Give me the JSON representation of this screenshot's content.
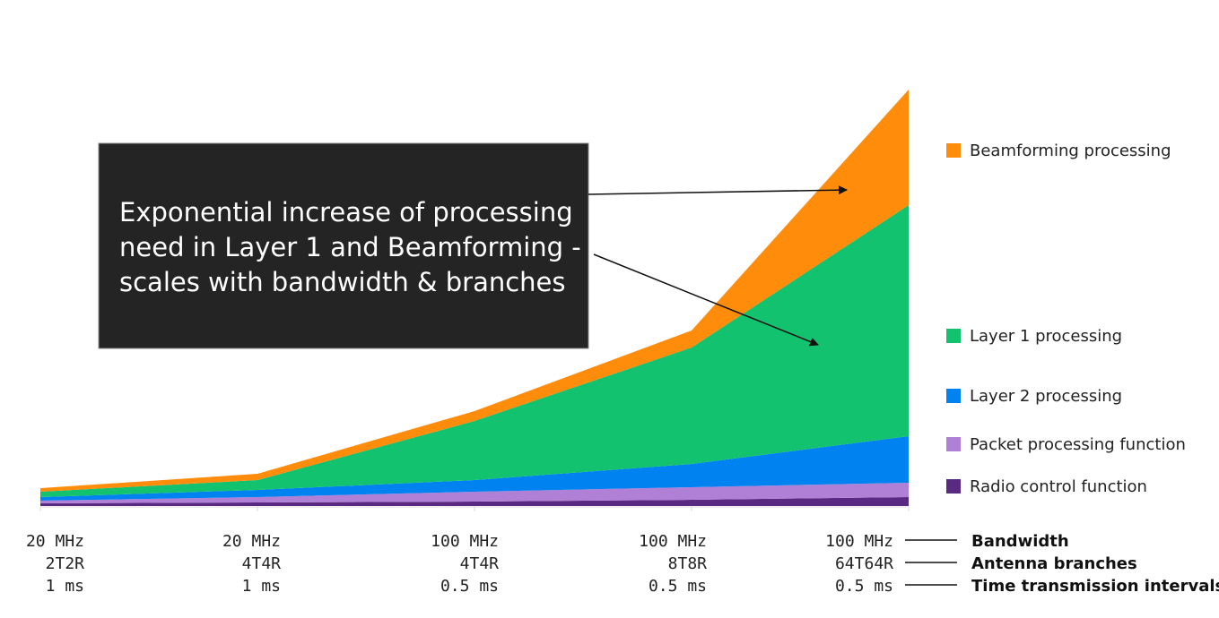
{
  "chart_data": {
    "type": "area",
    "stacked": true,
    "title": "",
    "xlabel": "",
    "ylabel": "",
    "ylim": [
      0,
      470
    ],
    "grid": false,
    "legend_position": "right",
    "categories": [
      {
        "bandwidth": "20 MHz",
        "antenna": "2T2R",
        "tti": "1 ms"
      },
      {
        "bandwidth": "20 MHz",
        "antenna": "4T4R",
        "tti": "1 ms"
      },
      {
        "bandwidth": "100 MHz",
        "antenna": "4T4R",
        "tti": "0.5 ms"
      },
      {
        "bandwidth": "100 MHz",
        "antenna": "8T8R",
        "tti": "0.5 ms"
      },
      {
        "bandwidth": "100 MHz",
        "antenna": "64T64R",
        "tti": "0.5 ms"
      }
    ],
    "row_labels": [
      "Bandwidth",
      "Antenna branches",
      "Time transmission intervals"
    ],
    "series": [
      {
        "name": "Radio control function",
        "color": "#5a2a82",
        "values": [
          3,
          4,
          5,
          7,
          10
        ]
      },
      {
        "name": "Packet processing function",
        "color": "#b07fd6",
        "values": [
          3,
          6,
          11,
          14,
          16
        ]
      },
      {
        "name": "Layer 2 processing",
        "color": "#0082f0",
        "values": [
          4,
          8,
          13,
          26,
          52
        ]
      },
      {
        "name": "Layer 1 processing",
        "color": "#12c26f",
        "values": [
          6,
          11,
          66,
          130,
          258
        ]
      },
      {
        "name": "Beamforming processing",
        "color": "#ff8c0a",
        "values": [
          4,
          7,
          11,
          19,
          129
        ]
      }
    ],
    "annotation": {
      "lines": [
        "Exponential increase of processing",
        "need in Layer 1 and Beamforming -",
        "scales with bandwidth & branches"
      ],
      "points_to": [
        "Beamforming processing",
        "Layer 1 processing"
      ]
    }
  }
}
